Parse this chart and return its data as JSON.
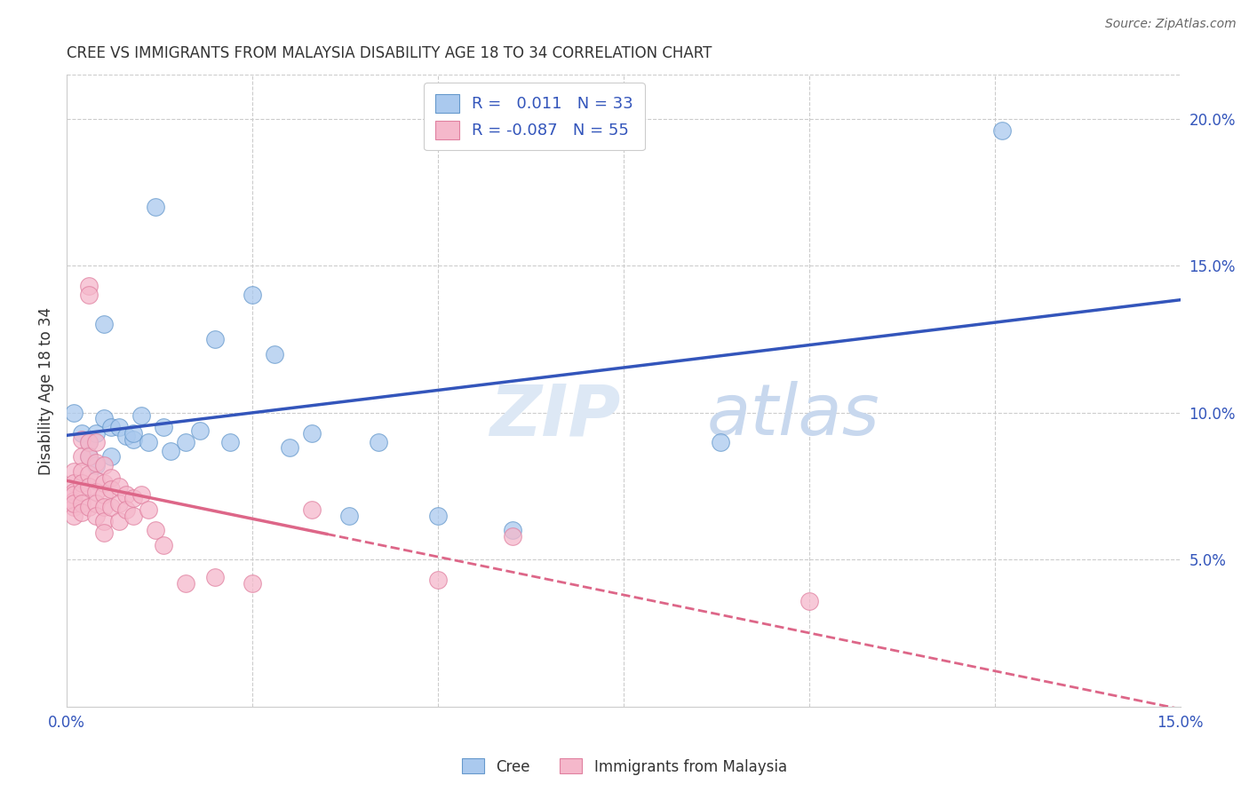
{
  "title": "CREE VS IMMIGRANTS FROM MALAYSIA DISABILITY AGE 18 TO 34 CORRELATION CHART",
  "source": "Source: ZipAtlas.com",
  "ylabel": "Disability Age 18 to 34",
  "xlim": [
    0.0,
    0.15
  ],
  "ylim": [
    0.0,
    0.215
  ],
  "xticks": [
    0.0,
    0.15
  ],
  "xtick_labels": [
    "0.0%",
    "15.0%"
  ],
  "yticks_right": [
    0.05,
    0.1,
    0.15,
    0.2
  ],
  "ytick_labels_right": [
    "5.0%",
    "10.0%",
    "15.0%",
    "20.0%"
  ],
  "legend_labels": [
    "Cree",
    "Immigrants from Malaysia"
  ],
  "cree_R": "0.011",
  "cree_N": "33",
  "malaysia_R": "-0.087",
  "malaysia_N": "55",
  "cree_color": "#aac9ee",
  "malaysia_color": "#f5b8cb",
  "cree_edge_color": "#6699cc",
  "malaysia_edge_color": "#e080a0",
  "cree_line_color": "#3355bb",
  "malaysia_line_color": "#dd6688",
  "watermark_color": "#d8e8f5",
  "background_color": "#ffffff",
  "grid_color": "#cccccc",
  "cree_x": [
    0.001,
    0.002,
    0.003,
    0.003,
    0.004,
    0.004,
    0.005,
    0.005,
    0.006,
    0.006,
    0.007,
    0.008,
    0.009,
    0.009,
    0.01,
    0.011,
    0.012,
    0.013,
    0.014,
    0.016,
    0.018,
    0.02,
    0.022,
    0.025,
    0.028,
    0.03,
    0.033,
    0.038,
    0.042,
    0.05,
    0.06,
    0.088,
    0.126
  ],
  "cree_y": [
    0.1,
    0.093,
    0.09,
    0.085,
    0.093,
    0.082,
    0.13,
    0.098,
    0.095,
    0.085,
    0.095,
    0.092,
    0.091,
    0.093,
    0.099,
    0.09,
    0.17,
    0.095,
    0.087,
    0.09,
    0.094,
    0.125,
    0.09,
    0.14,
    0.12,
    0.088,
    0.093,
    0.065,
    0.09,
    0.065,
    0.06,
    0.09,
    0.196
  ],
  "malaysia_x": [
    0.001,
    0.001,
    0.001,
    0.001,
    0.001,
    0.001,
    0.001,
    0.001,
    0.002,
    0.002,
    0.002,
    0.002,
    0.002,
    0.002,
    0.002,
    0.003,
    0.003,
    0.003,
    0.003,
    0.003,
    0.003,
    0.003,
    0.004,
    0.004,
    0.004,
    0.004,
    0.004,
    0.004,
    0.005,
    0.005,
    0.005,
    0.005,
    0.005,
    0.005,
    0.006,
    0.006,
    0.006,
    0.007,
    0.007,
    0.007,
    0.008,
    0.008,
    0.009,
    0.009,
    0.01,
    0.011,
    0.012,
    0.013,
    0.016,
    0.02,
    0.025,
    0.033,
    0.05,
    0.06,
    0.1
  ],
  "malaysia_y": [
    0.08,
    0.076,
    0.073,
    0.07,
    0.068,
    0.065,
    0.072,
    0.069,
    0.091,
    0.085,
    0.08,
    0.076,
    0.073,
    0.069,
    0.066,
    0.143,
    0.14,
    0.09,
    0.085,
    0.079,
    0.075,
    0.068,
    0.09,
    0.083,
    0.077,
    0.073,
    0.069,
    0.065,
    0.082,
    0.076,
    0.072,
    0.068,
    0.063,
    0.059,
    0.078,
    0.074,
    0.068,
    0.075,
    0.069,
    0.063,
    0.072,
    0.067,
    0.071,
    0.065,
    0.072,
    0.067,
    0.06,
    0.055,
    0.042,
    0.044,
    0.042,
    0.067,
    0.043,
    0.058,
    0.036
  ]
}
